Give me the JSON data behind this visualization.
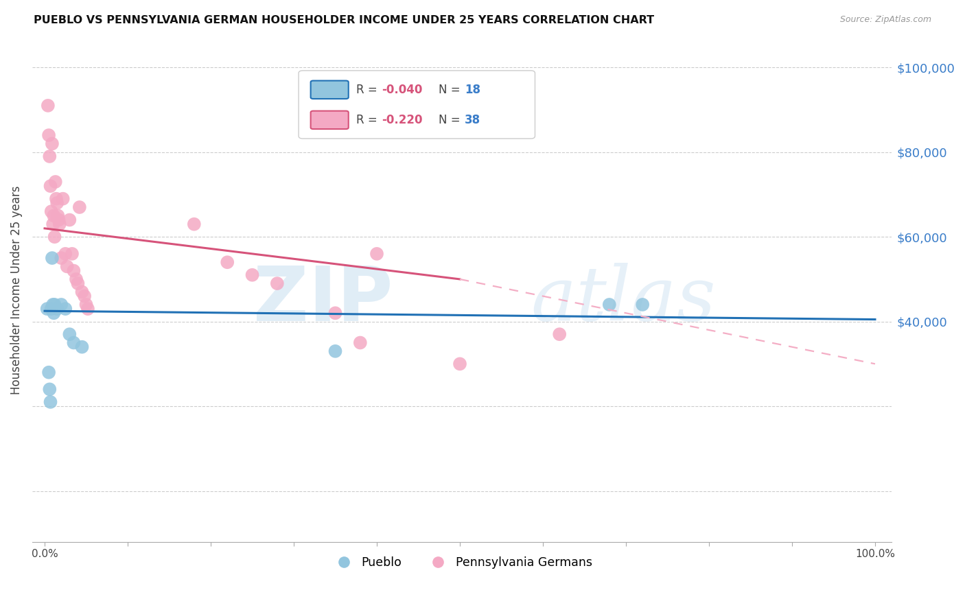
{
  "title": "PUEBLO VS PENNSYLVANIA GERMAN HOUSEHOLDER INCOME UNDER 25 YEARS CORRELATION CHART",
  "source": "Source: ZipAtlas.com",
  "ylabel": "Householder Income Under 25 years",
  "yticks": [
    0,
    20000,
    40000,
    60000,
    80000,
    100000
  ],
  "ytick_labels": [
    "",
    "",
    "$40,000",
    "$60,000",
    "$80,000",
    "$100,000"
  ],
  "ymin": -12000,
  "ymax": 107000,
  "xmin": -1.5,
  "xmax": 102,
  "pueblo_color": "#92c5de",
  "pa_german_color": "#f4a9c4",
  "pueblo_line_color": "#2171b5",
  "pa_german_line_color": "#d6537a",
  "pa_german_dashed_color": "#f4aec5",
  "background_color": "#ffffff",
  "grid_color": "#cccccc",
  "ytick_label_color": "#3a7dc9",
  "pueblo_line_x0": 0,
  "pueblo_line_y0": 42500,
  "pueblo_line_x1": 100,
  "pueblo_line_y1": 40500,
  "pa_line_x0": 0,
  "pa_line_y0": 62000,
  "pa_line_x1": 50,
  "pa_line_y1": 50000,
  "pa_line_x1_dash": 50,
  "pa_line_y1_dash": 50000,
  "pa_line_x2_dash": 100,
  "pa_line_y2_dash": 30000,
  "pueblo_points_x": [
    0.3,
    0.5,
    0.6,
    0.7,
    0.8,
    0.9,
    1.0,
    1.1,
    1.2,
    1.5,
    2.0,
    2.5,
    3.0,
    3.5,
    4.5,
    35,
    68,
    72
  ],
  "pueblo_points_y": [
    43000,
    28000,
    24000,
    21000,
    43000,
    55000,
    44000,
    42000,
    44000,
    43000,
    44000,
    43000,
    37000,
    35000,
    34000,
    33000,
    44000,
    44000
  ],
  "pa_german_points_x": [
    0.4,
    0.5,
    0.6,
    0.7,
    0.8,
    0.9,
    1.0,
    1.1,
    1.2,
    1.3,
    1.4,
    1.5,
    1.6,
    1.7,
    1.8,
    2.0,
    2.2,
    2.5,
    2.7,
    3.0,
    3.3,
    3.5,
    3.8,
    4.0,
    4.2,
    4.5,
    4.8,
    5.0,
    5.2,
    18,
    22,
    25,
    28,
    35,
    38,
    50,
    62,
    40
  ],
  "pa_german_points_y": [
    91000,
    84000,
    79000,
    72000,
    66000,
    82000,
    63000,
    65000,
    60000,
    73000,
    69000,
    68000,
    65000,
    64000,
    63000,
    55000,
    69000,
    56000,
    53000,
    64000,
    56000,
    52000,
    50000,
    49000,
    67000,
    47000,
    46000,
    44000,
    43000,
    63000,
    54000,
    51000,
    49000,
    42000,
    35000,
    30000,
    37000,
    56000
  ]
}
